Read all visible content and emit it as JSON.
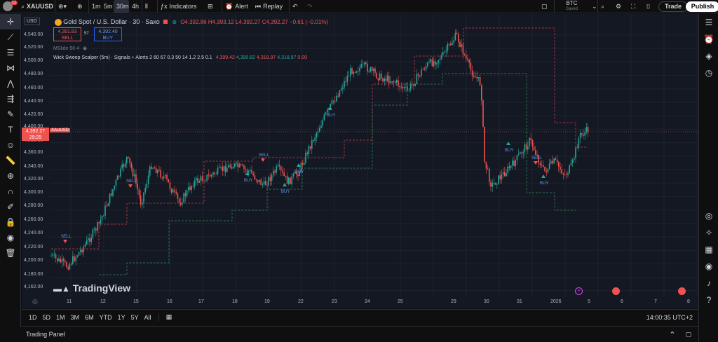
{
  "toolbar": {
    "avatar_badge": "11",
    "symbol": "XAUUSD",
    "intervals": [
      "1m",
      "5m",
      "30m",
      "4h"
    ],
    "active_interval": "30m",
    "indicators_label": "Indicators",
    "alert_label": "Alert",
    "replay_label": "Replay",
    "btc_label": "BTC",
    "btc_sub": "Saved",
    "trade_label": "Trade",
    "publish_label": "Publish"
  },
  "chart_header": {
    "currency": "USD",
    "title": "Gold Spot / U.S. Dollar · 30 · Saxo",
    "o": "O4,392.86",
    "h": "H4,393.12",
    "l": "L4,392.27",
    "c": "C4,392.27",
    "change": "−0.61 (−0.01%)",
    "sell_price": "4,391.83",
    "sell_label": "SELL",
    "spread": "57",
    "buy_price": "4,392.40",
    "buy_label": "BUY",
    "ma_label": "MSlide 50 4",
    "indicator_name": "Wick Sweep Scalper (5m) · Signals + Alerts 2 60 67 0.3 50 14 1.2 2.5 0.1",
    "ind_v1": "4,399.42",
    "ind_v2": "4,390.82",
    "ind_v3": "4,318.97",
    "ind_v4": "4,318.97",
    "ind_v5": "0.00"
  },
  "price_axis": {
    "labels": [
      "4,540.00",
      "4,520.00",
      "4,500.00",
      "4,480.00",
      "4,460.00",
      "4,440.00",
      "4,420.00",
      "4,400.00",
      "4,380.00",
      "4,360.00",
      "4,340.00",
      "4,320.00",
      "4,300.00",
      "4,280.00",
      "4,260.00",
      "4,240.00",
      "4,220.00",
      "4,200.00",
      "4,180.00",
      "4,162.00"
    ],
    "current_price": "4,392.27",
    "current_time": "29:25",
    "current_symbol": "XAUUSD"
  },
  "time_axis": {
    "labels": [
      "11",
      "12",
      "15",
      "16",
      "17",
      "18",
      "19",
      "22",
      "23",
      "24",
      "25",
      "29",
      "30",
      "31",
      "2026",
      "5",
      "6",
      "7",
      "8"
    ]
  },
  "signals": {
    "sell": "SELL",
    "buy": "BUY"
  },
  "watermark": "TradingView",
  "range_bar": {
    "ranges": [
      "1D",
      "5D",
      "1M",
      "3M",
      "6M",
      "YTD",
      "1Y",
      "5Y",
      "All"
    ],
    "clock": "14:00:35 UTC+2"
  },
  "panel": {
    "label": "Trading Panel"
  },
  "colors": {
    "up": "#26a69a",
    "down": "#ef5350",
    "accent": "#2962ff",
    "buy_signal": "#2962ff",
    "sell_signal": "#ef5350"
  }
}
